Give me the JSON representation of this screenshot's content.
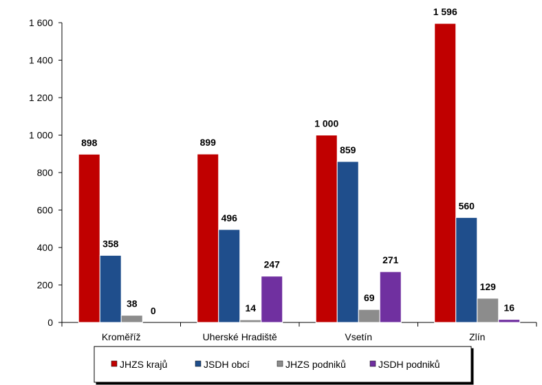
{
  "chart_data": {
    "type": "bar",
    "categories": [
      "Kroměříž",
      "Uherské Hradiště",
      "Vsetín",
      "Zlín"
    ],
    "series": [
      {
        "name": "JHZS krajů",
        "values": [
          898,
          899,
          1000,
          1596
        ],
        "labels": [
          "898",
          "899",
          "1 000",
          "1 596"
        ],
        "color": "#C00000"
      },
      {
        "name": "JSDH obcí",
        "values": [
          358,
          496,
          859,
          560
        ],
        "labels": [
          "358",
          "496",
          "859",
          "560"
        ],
        "color": "#1F4E8C"
      },
      {
        "name": "JHZS podniků",
        "values": [
          38,
          14,
          69,
          129
        ],
        "labels": [
          "38",
          "14",
          "69",
          "129"
        ],
        "color": "#8C8C8C"
      },
      {
        "name": "JSDH podniků",
        "values": [
          0,
          247,
          271,
          16
        ],
        "labels": [
          "0",
          "247",
          "271",
          "16"
        ],
        "color": "#7030A0"
      }
    ],
    "ylim": [
      0,
      1600
    ],
    "yticks": [
      0,
      200,
      400,
      600,
      800,
      1000,
      1200,
      1400,
      1600
    ],
    "ytick_labels": [
      "0",
      "200",
      "400",
      "600",
      "800",
      "1 000",
      "1 200",
      "1 400",
      "1 600"
    ],
    "grid": false,
    "legend_position": "bottom"
  }
}
